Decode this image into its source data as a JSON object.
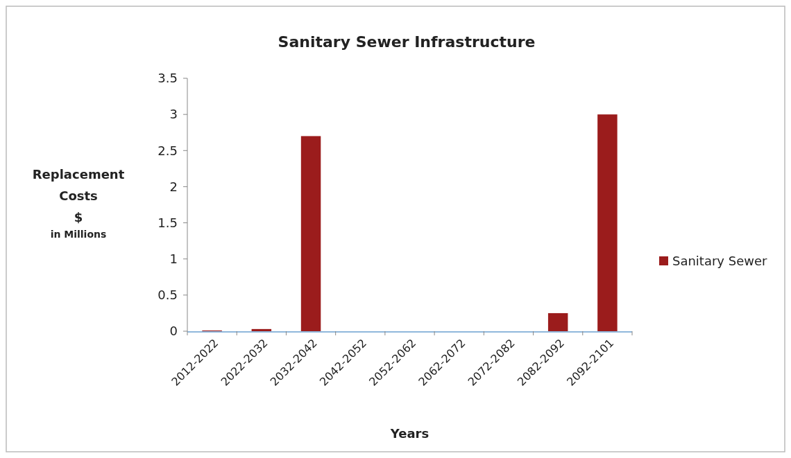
{
  "chart_data": {
    "type": "bar",
    "title": "Sanitary Sewer Infrastructure",
    "xlabel": "Years",
    "ylabel": "Replacement\nCosts\n$\nin Millions",
    "categories": [
      "2012-2022",
      "2022-2032",
      "2032-2042",
      "2042-2052",
      "2052-2062",
      "2062-2072",
      "2072-2082",
      "2082-2092",
      "2092-2101"
    ],
    "series": [
      {
        "name": "Sanitary Sewer",
        "color": "#9b1c1c",
        "values": [
          0.01,
          0.03,
          2.7,
          0,
          0,
          0,
          0,
          0.25,
          3.0
        ]
      }
    ],
    "ylim": [
      0,
      3.5
    ],
    "yticks": [
      0,
      0.5,
      1,
      1.5,
      2,
      2.5,
      3,
      3.5
    ],
    "legend": "right",
    "grid": false
  }
}
